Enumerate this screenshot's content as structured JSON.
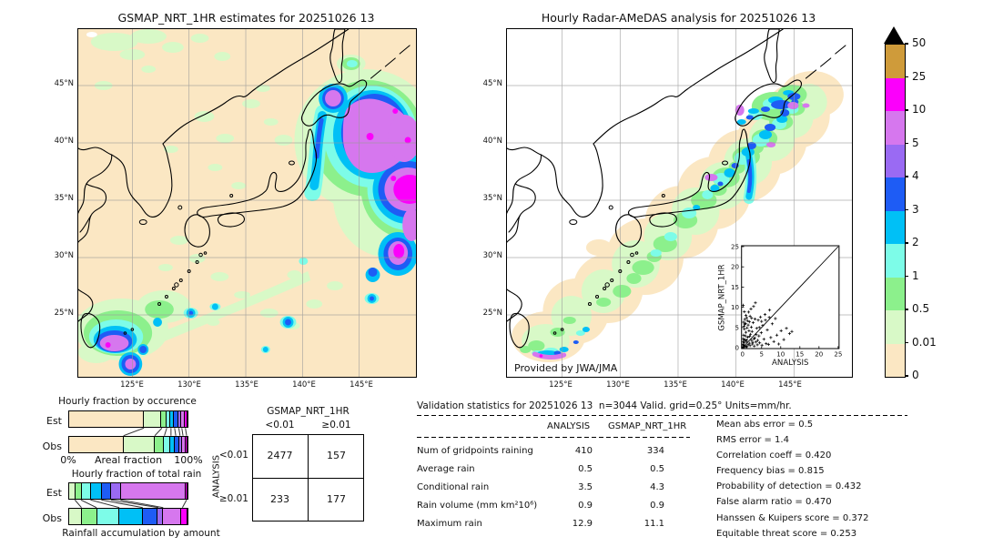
{
  "palette": {
    "cream": "#fbe7c3",
    "pale_green": "#d8f9c7",
    "green": "#8cf08c",
    "aqua": "#7dfce8",
    "cyan": "#00c0f6",
    "blue": "#1e5cf5",
    "purple": "#9a6af3",
    "violet": "#d677ee",
    "magenta": "#fb00fb",
    "gold": "#cf9b3a",
    "over": "#000000",
    "grid": "#999999"
  },
  "colorbar": {
    "labels_top_to_bottom": [
      "50",
      "25",
      "10",
      "5",
      "4",
      "3",
      "2",
      "1",
      "0.5",
      "0.01",
      "0"
    ],
    "colors_top_to_bottom": [
      "gold",
      "magenta",
      "violet",
      "purple",
      "blue",
      "cyan",
      "aqua",
      "green",
      "pale_green",
      "cream"
    ]
  },
  "chart_data": [
    {
      "type": "heatmap",
      "id": "gsmap_map",
      "title": "GSMAP_NRT_1HR estimates for 20251026 13",
      "xticks": [
        "125°E",
        "130°E",
        "135°E",
        "140°E",
        "145°E"
      ],
      "yticks": [
        "45°N",
        "40°N",
        "35°N",
        "30°N",
        "25°N"
      ],
      "levels": [
        0,
        0.01,
        0.5,
        1,
        2,
        3,
        4,
        5,
        10,
        25,
        50
      ],
      "units": "mm/hr"
    },
    {
      "type": "heatmap",
      "id": "radar_map",
      "title": "Hourly Radar-AMeDAS analysis for 20251026 13",
      "credit": "Provided by JWA/JMA",
      "xticks": [
        "125°E",
        "130°E",
        "135°E",
        "140°E",
        "145°E"
      ],
      "yticks": [
        "45°N",
        "40°N",
        "35°N",
        "30°N",
        "25°N"
      ],
      "levels": [
        0,
        0.01,
        0.5,
        1,
        2,
        3,
        4,
        5,
        10,
        25,
        50
      ],
      "units": "mm/hr"
    },
    {
      "type": "bar",
      "id": "occurrence",
      "title": "Hourly fraction by occurence",
      "x_min_label": "0%",
      "xlabel": "Areal fraction",
      "x_max_label": "100%",
      "series": [
        {
          "name": "Est",
          "segments": [
            {
              "color": "cream",
              "pct": 63
            },
            {
              "color": "pale_green",
              "pct": 15
            },
            {
              "color": "green",
              "pct": 4
            },
            {
              "color": "aqua",
              "pct": 3.5
            },
            {
              "color": "cyan",
              "pct": 3
            },
            {
              "color": "blue",
              "pct": 3.5
            },
            {
              "color": "purple",
              "pct": 2.5
            },
            {
              "color": "violet",
              "pct": 3
            },
            {
              "color": "magenta",
              "pct": 2.5
            }
          ]
        },
        {
          "name": "Obs",
          "segments": [
            {
              "color": "cream",
              "pct": 46
            },
            {
              "color": "pale_green",
              "pct": 26
            },
            {
              "color": "green",
              "pct": 8
            },
            {
              "color": "aqua",
              "pct": 5.5
            },
            {
              "color": "cyan",
              "pct": 4
            },
            {
              "color": "blue",
              "pct": 3.5
            },
            {
              "color": "purple",
              "pct": 2.5
            },
            {
              "color": "violet",
              "pct": 3
            },
            {
              "color": "magenta",
              "pct": 1.5
            }
          ]
        }
      ]
    },
    {
      "type": "bar",
      "id": "total_rain",
      "title": "Hourly fraction of total rain",
      "footer": "Rainfall accumulation by amount",
      "series": [
        {
          "name": "Est",
          "segments": [
            {
              "color": "pale_green",
              "pct": 5.5
            },
            {
              "color": "green",
              "pct": 5
            },
            {
              "color": "aqua",
              "pct": 8
            },
            {
              "color": "cyan",
              "pct": 9
            },
            {
              "color": "blue",
              "pct": 8
            },
            {
              "color": "purple",
              "pct": 8
            },
            {
              "color": "violet",
              "pct": 55
            },
            {
              "color": "magenta",
              "pct": 1.5
            }
          ]
        },
        {
          "name": "Obs",
          "segments": [
            {
              "color": "pale_green",
              "pct": 11
            },
            {
              "color": "green",
              "pct": 12.5
            },
            {
              "color": "aqua",
              "pct": 19
            },
            {
              "color": "cyan",
              "pct": 19.5
            },
            {
              "color": "blue",
              "pct": 13
            },
            {
              "color": "purple",
              "pct": 4
            },
            {
              "color": "violet",
              "pct": 16
            },
            {
              "color": "magenta",
              "pct": 5
            }
          ]
        }
      ]
    },
    {
      "type": "table",
      "id": "contingency",
      "title": "GSMAP_NRT_1HR",
      "row_axis": "ANALYSIS",
      "col_labels": [
        "<0.01",
        "≥0.01"
      ],
      "row_labels": [
        "<0.01",
        "≥0.01"
      ],
      "values": [
        [
          "2477",
          "157"
        ],
        [
          "233",
          "177"
        ]
      ]
    },
    {
      "type": "scatter",
      "id": "inset",
      "xlabel": "ANALYSIS",
      "ylabel": "GSMAP_NRT_1HR",
      "xlim": [
        0,
        25
      ],
      "ylim": [
        0,
        25
      ],
      "xticks": [
        "0",
        "5",
        "10",
        "15",
        "20",
        "25"
      ],
      "yticks": [
        "0",
        "5",
        "10",
        "15",
        "20",
        "25"
      ],
      "points": [
        [
          0.2,
          0.1
        ],
        [
          0.3,
          0.5
        ],
        [
          0.5,
          0.2
        ],
        [
          0.4,
          1.2
        ],
        [
          0.6,
          2.0
        ],
        [
          0.8,
          0.4
        ],
        [
          1.0,
          1.5
        ],
        [
          1.2,
          0.3
        ],
        [
          1.4,
          2.6
        ],
        [
          1.5,
          0.8
        ],
        [
          1.7,
          4.2
        ],
        [
          1.8,
          1.1
        ],
        [
          2.0,
          0.5
        ],
        [
          2.1,
          3.3
        ],
        [
          2.3,
          5.1
        ],
        [
          2.4,
          1.8
        ],
        [
          2.6,
          0.9
        ],
        [
          2.8,
          6.2
        ],
        [
          3.0,
          2.2
        ],
        [
          3.1,
          0.4
        ],
        [
          3.3,
          7.1
        ],
        [
          3.5,
          1.4
        ],
        [
          3.7,
          4.8
        ],
        [
          3.9,
          0.7
        ],
        [
          4.1,
          6.8
        ],
        [
          4.3,
          2.9
        ],
        [
          4.5,
          1.2
        ],
        [
          4.7,
          7.6
        ],
        [
          4.9,
          3.7
        ],
        [
          5.1,
          0.6
        ],
        [
          5.3,
          5.5
        ],
        [
          5.6,
          2.1
        ],
        [
          5.9,
          8.2
        ],
        [
          6.2,
          1.0
        ],
        [
          6.5,
          4.4
        ],
        [
          6.8,
          0.8
        ],
        [
          7.1,
          9.3
        ],
        [
          7.4,
          2.5
        ],
        [
          7.8,
          5.9
        ],
        [
          8.2,
          1.5
        ],
        [
          8.6,
          7.2
        ],
        [
          9.0,
          3.1
        ],
        [
          9.5,
          0.9
        ],
        [
          10.1,
          4.2
        ],
        [
          10.8,
          2.0
        ],
        [
          11.5,
          4.8
        ],
        [
          12.3,
          3.5
        ],
        [
          12.9,
          4.0
        ],
        [
          0.3,
          3.1
        ],
        [
          0.5,
          4.6
        ],
        [
          0.8,
          6.0
        ],
        [
          1.1,
          7.4
        ],
        [
          1.6,
          8.8
        ],
        [
          2.2,
          9.6
        ],
        [
          0.2,
          2.2
        ],
        [
          0.4,
          5.3
        ],
        [
          0.9,
          8.0
        ],
        [
          1.3,
          6.7
        ],
        [
          0.6,
          7.0
        ],
        [
          2.9,
          10.2
        ],
        [
          3.4,
          11.1
        ],
        [
          0.7,
          1.8
        ],
        [
          1.9,
          2.8
        ],
        [
          2.5,
          4.0
        ],
        [
          3.6,
          3.2
        ],
        [
          4.4,
          5.0
        ],
        [
          5.0,
          6.5
        ],
        [
          0.1,
          0.8
        ],
        [
          0.2,
          1.5
        ],
        [
          1.0,
          0.2
        ],
        [
          2.0,
          7.8
        ],
        [
          6.0,
          6.8
        ],
        [
          7.0,
          7.5
        ],
        [
          0.3,
          6.3
        ],
        [
          0.6,
          5.8
        ],
        [
          1.2,
          4.9
        ],
        [
          1.8,
          6.4
        ],
        [
          2.4,
          7.3
        ],
        [
          0.9,
          3.8
        ],
        [
          1.5,
          5.6
        ],
        [
          0.4,
          0.6
        ],
        [
          0.8,
          2.9
        ],
        [
          1.1,
          1.9
        ],
        [
          2.7,
          1.3
        ],
        [
          3.2,
          2.4
        ],
        [
          4.0,
          1.8
        ],
        [
          0.5,
          8.9
        ],
        [
          0.2,
          10.5
        ]
      ]
    },
    {
      "type": "table",
      "id": "validation",
      "title": "Validation statistics for 20251026 13  n=3044 Valid. grid=0.25° Units=mm/hr.",
      "columns": [
        "ANALYSIS",
        "GSMAP_NRT_1HR"
      ],
      "rows": [
        {
          "label": "Num of gridpoints raining",
          "a": "410",
          "g": "334"
        },
        {
          "label": "Average rain",
          "a": "0.5",
          "g": "0.5"
        },
        {
          "label": "Conditional rain",
          "a": "3.5",
          "g": "4.3"
        },
        {
          "label": "Rain volume (mm km²10⁶)",
          "a": "0.9",
          "g": "0.9"
        },
        {
          "label": "Maximum rain",
          "a": "12.9",
          "g": "11.1"
        }
      ],
      "score_lines": [
        "Mean abs error =  0.5",
        "RMS error =  1.4",
        "Correlation coeff =  0.420",
        "Frequency bias =  0.815",
        "Probability of detection =  0.432",
        "False alarm ratio =  0.470",
        "Hanssen & Kuipers score =  0.372",
        "Equitable threat score =  0.253"
      ]
    }
  ]
}
